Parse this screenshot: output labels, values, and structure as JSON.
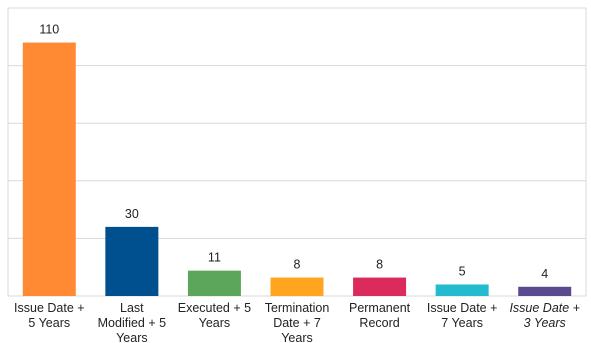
{
  "chart_data": {
    "type": "bar",
    "categories": [
      "Issue Date + 5 Years",
      "Last Modified + 5 Years",
      "Executed + 5 Years",
      "Termination Date + 7 Years",
      "Permanent Record",
      "Issue Date + 7 Years",
      "Issue Date + 3 Years"
    ],
    "category_label_lines": [
      [
        "Issue Date +",
        "5 Years"
      ],
      [
        "Last",
        "Modified + 5",
        "Years"
      ],
      [
        "Executed + 5",
        "Years"
      ],
      [
        "Termination",
        "Date + 7",
        "Years"
      ],
      [
        "Permanent",
        "Record"
      ],
      [
        "Issue Date +",
        "7 Years"
      ],
      [
        "Issue Date +",
        "3 Years"
      ]
    ],
    "italic_categories": [
      false,
      false,
      false,
      false,
      false,
      false,
      true
    ],
    "values": [
      110,
      30,
      11,
      8,
      8,
      5,
      4
    ],
    "data_labels": [
      "110",
      "30",
      "11",
      "8",
      "8",
      "5",
      "4"
    ],
    "colors": [
      "#FF8A33",
      "#004F8F",
      "#5BA65B",
      "#FFA51F",
      "#DB2A5C",
      "#25BBCF",
      "#5A4A8F"
    ],
    "title": "",
    "xlabel": "",
    "ylabel": "",
    "ylim": [
      0,
      125
    ],
    "gridlines": [
      0,
      25,
      50,
      75,
      100,
      125
    ],
    "grid": true,
    "legend": "none"
  }
}
